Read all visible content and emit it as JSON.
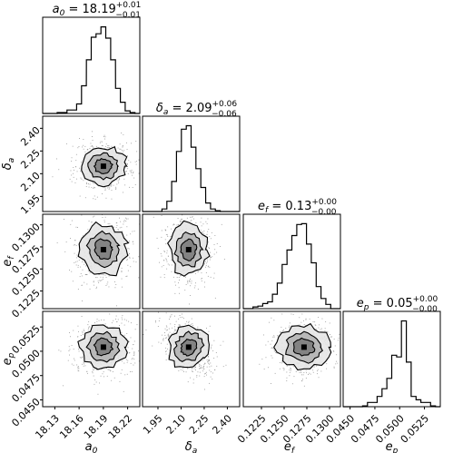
{
  "chart_data": {
    "type": "corner",
    "parameters": [
      {
        "symbol": "a",
        "subscript": "0",
        "median": "18.19",
        "plus": "+0.01",
        "minus": "−0.01",
        "range": [
          18.115,
          18.235
        ],
        "ticks": [
          "18.13",
          "18.16",
          "18.19",
          "18.22"
        ],
        "tick_values": [
          18.13,
          18.16,
          18.19,
          18.22
        ],
        "histogram": [
          0,
          0,
          0,
          1,
          1,
          4,
          4,
          11,
          32,
          62,
          88,
          92,
          100,
          87,
          62,
          29,
          13,
          3,
          1,
          0
        ]
      },
      {
        "symbol": "δ",
        "subscript": "a",
        "median": "2.09",
        "plus": "+0.06",
        "minus": "−0.06",
        "range": [
          1.85,
          2.48
        ],
        "ticks": [
          "1.95",
          "2.10",
          "2.25",
          "2.40"
        ],
        "tick_values": [
          1.95,
          2.1,
          2.25,
          2.4
        ],
        "histogram": [
          0,
          0,
          0,
          0,
          3,
          12,
          35,
          70,
          96,
          100,
          75,
          50,
          28,
          10,
          3,
          1,
          0,
          0,
          0,
          0
        ]
      },
      {
        "symbol": "e",
        "subscript": "f",
        "median": "0.13",
        "plus": "+0.00",
        "minus": "−0.00",
        "range": [
          0.1205,
          0.1312
        ],
        "ticks": [
          "0.1225",
          "0.1250",
          "0.1275",
          "0.1300"
        ],
        "tick_values": [
          0.1225,
          0.125,
          0.1275,
          0.13
        ],
        "histogram": [
          0,
          0,
          2,
          3,
          6,
          8,
          17,
          30,
          52,
          69,
          86,
          99,
          100,
          76,
          54,
          26,
          12,
          5,
          0,
          0
        ]
      },
      {
        "symbol": "e",
        "subscript": "p",
        "median": "0.05",
        "plus": "+0.00",
        "minus": "−0.00",
        "range": [
          0.0443,
          0.0541
        ],
        "ticks": [
          "0.0450",
          "0.0475",
          "0.0500",
          "0.0525"
        ],
        "tick_values": [
          0.045,
          0.0475,
          0.05,
          0.0525
        ],
        "histogram": [
          0,
          0,
          0,
          0,
          1,
          5,
          5,
          12,
          21,
          33,
          60,
          58,
          100,
          52,
          12,
          8,
          5,
          5,
          1,
          0
        ]
      }
    ],
    "contour_levels": [
      0.39,
      0.86,
      1.39
    ],
    "grid": false,
    "legend": "none"
  }
}
